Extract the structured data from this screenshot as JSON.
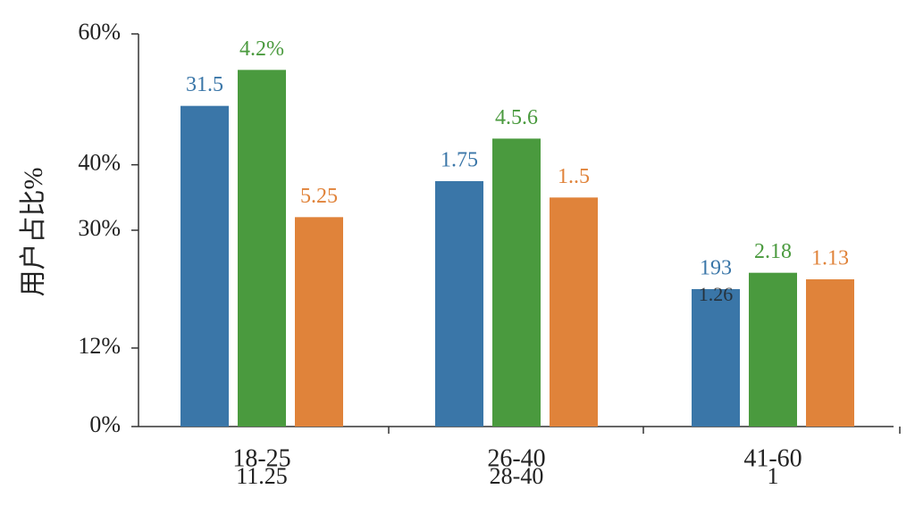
{
  "chart_data": {
    "type": "bar",
    "ylabel": "用户占比%",
    "categories": [
      "18-25",
      "26-40",
      "41-60"
    ],
    "category_sublabels": [
      "11.25",
      "28-40",
      "1"
    ],
    "series": [
      {
        "color": "#3a76a8",
        "values": [
          49,
          37.5,
          21
        ]
      },
      {
        "color": "#4a9a3e",
        "values": [
          54.5,
          44,
          23.5
        ]
      },
      {
        "color": "#e0833a",
        "values": [
          32,
          35,
          22.5
        ]
      }
    ],
    "annotations": [
      [
        "31.5",
        "1.75",
        "193"
      ],
      [
        "4.2%",
        "4.5.6",
        "2.18"
      ],
      [
        "5.25",
        "1..5",
        "1.13"
      ]
    ],
    "extra_annotation": "1.26",
    "ylim": [
      0,
      60
    ],
    "yticks": [
      {
        "value": 0,
        "label": "0%"
      },
      {
        "value": 12,
        "label": "12%"
      },
      {
        "value": 30,
        "label": "30%"
      },
      {
        "value": 40,
        "label": "40%"
      },
      {
        "value": 60,
        "label": "60%"
      }
    ],
    "grid": false
  }
}
